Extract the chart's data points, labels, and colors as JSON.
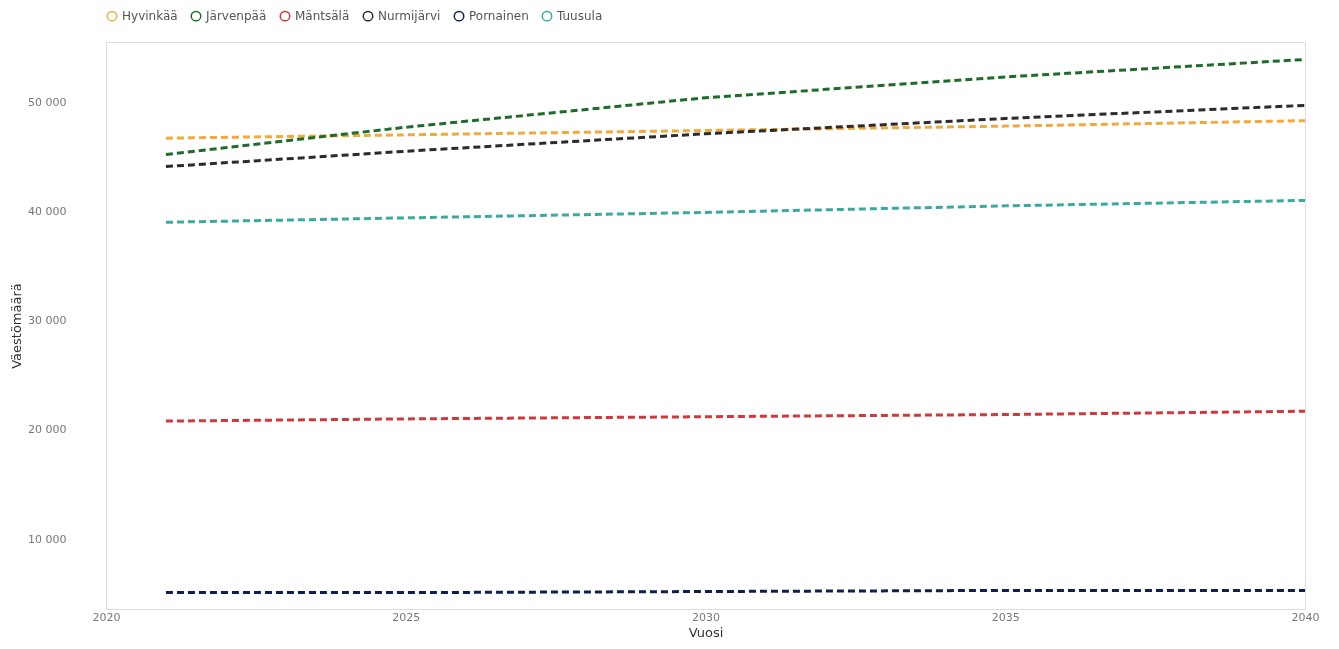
{
  "chart_data": {
    "type": "line",
    "xlabel": "Vuosi",
    "ylabel": "Väestömäärä",
    "x": [
      2021,
      2025,
      2030,
      2035,
      2040
    ],
    "series": [
      {
        "name": "Hyvinkää",
        "color": "#f2a93b",
        "values": [
          46700,
          47000,
          47400,
          47800,
          48300
        ]
      },
      {
        "name": "Järvenpää",
        "color": "#1e6b2a",
        "values": [
          45200,
          47700,
          50400,
          52300,
          53900
        ]
      },
      {
        "name": "Mäntsälä",
        "color": "#d0393b",
        "values": [
          20800,
          21000,
          21200,
          21400,
          21700
        ]
      },
      {
        "name": "Nurmijärvi",
        "color": "#2b2b2b",
        "values": [
          44100,
          45500,
          47100,
          48500,
          49700
        ]
      },
      {
        "name": "Pornainen",
        "color": "#0f1f4f",
        "values": [
          5100,
          5100,
          5200,
          5300,
          5300
        ]
      },
      {
        "name": "Tuusula",
        "color": "#3aa99f",
        "values": [
          39000,
          39400,
          39900,
          40500,
          41000
        ]
      }
    ],
    "xlim": [
      2020,
      2040
    ],
    "xticks": [
      2020,
      2025,
      2030,
      2035,
      2040
    ],
    "ylim": [
      3600,
      55500
    ],
    "yticks": [
      {
        "value": 10000,
        "label": "10 000"
      },
      {
        "value": 20000,
        "label": "20 000"
      },
      {
        "value": 30000,
        "label": "30 000"
      },
      {
        "value": 40000,
        "label": "40 000"
      },
      {
        "value": 50000,
        "label": "50 000"
      }
    ],
    "legend": "top",
    "grid": false,
    "line_style": "dashed",
    "marker": "none"
  }
}
